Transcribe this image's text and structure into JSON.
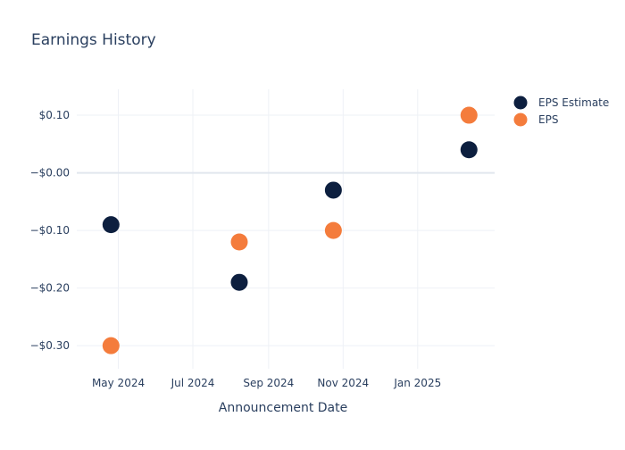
{
  "chart_data": {
    "type": "scatter",
    "title": "Earnings History",
    "xlabel": "Announcement Date",
    "ylabel": "",
    "x_ticks": [
      {
        "date": "2024-05-01",
        "label": "May 2024"
      },
      {
        "date": "2024-07-01",
        "label": "Jul 2024"
      },
      {
        "date": "2024-09-01",
        "label": "Sep 2024"
      },
      {
        "date": "2024-11-01",
        "label": "Nov 2024"
      },
      {
        "date": "2025-01-01",
        "label": "Jan 2025"
      }
    ],
    "y_ticks": [
      {
        "value": 0.1,
        "label": "$0.10"
      },
      {
        "value": 0.0,
        "label": "−$0.00"
      },
      {
        "value": -0.1,
        "label": "−$0.10"
      },
      {
        "value": -0.2,
        "label": "−$0.20"
      },
      {
        "value": -0.3,
        "label": "−$0.30"
      }
    ],
    "xlim": [
      "2024-03-28",
      "2025-03-05"
    ],
    "ylim": [
      -0.34,
      0.145
    ],
    "grid": true,
    "legend_position": "top-right",
    "series": [
      {
        "name": "EPS Estimate",
        "color": "#0d1f3f",
        "points": [
          {
            "x": "2024-04-25",
            "y": -0.09
          },
          {
            "x": "2024-08-08",
            "y": -0.19
          },
          {
            "x": "2024-10-24",
            "y": -0.03
          },
          {
            "x": "2025-02-12",
            "y": 0.04
          }
        ]
      },
      {
        "name": "EPS",
        "color": "#f47c3c",
        "points": [
          {
            "x": "2024-04-25",
            "y": -0.3
          },
          {
            "x": "2024-08-08",
            "y": -0.12
          },
          {
            "x": "2024-10-24",
            "y": -0.1
          },
          {
            "x": "2025-02-12",
            "y": 0.1
          }
        ]
      }
    ]
  }
}
